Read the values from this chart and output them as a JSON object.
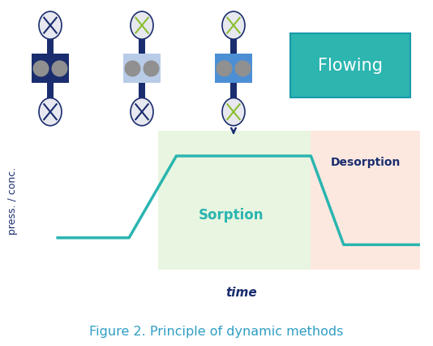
{
  "bg_color": "#ffffff",
  "fig_title": "Figure 2. Principle of dynamic methods",
  "fig_title_color": "#2e9ec4",
  "fig_title_fontsize": 11.5,
  "line_color": "#2ab5b0",
  "line_color_desorption": "#9daab5",
  "axis_color": "#1a2d6e",
  "sorption_bg": "#e8f5e0",
  "desorption_bg": "#fde8e0",
  "flowing_bg": "#2db5b0",
  "flowing_border": "#1a9aaa",
  "sorption_label": "Sorption",
  "sorption_label_color": "#2ab5b0",
  "desorption_label": "Desorption",
  "desorption_label_color": "#1a2d6e",
  "flowing_label": "Flowing",
  "flowing_label_color": "#ffffff",
  "ylabel": "press. / conc.",
  "ylabel_color": "#1a2d6e",
  "xlabel": "time",
  "xlabel_color": "#1a2d6e",
  "valve_dark_blue": "#1a2d6e",
  "valve_light_blue1": "#b8cce8",
  "valve_light_blue2": "#4d8fd4",
  "valve_green": "#8bbf30",
  "valve_gray": "#909090",
  "valve_white": "#e8e8f0",
  "valve_outline": "#1a2d6e"
}
